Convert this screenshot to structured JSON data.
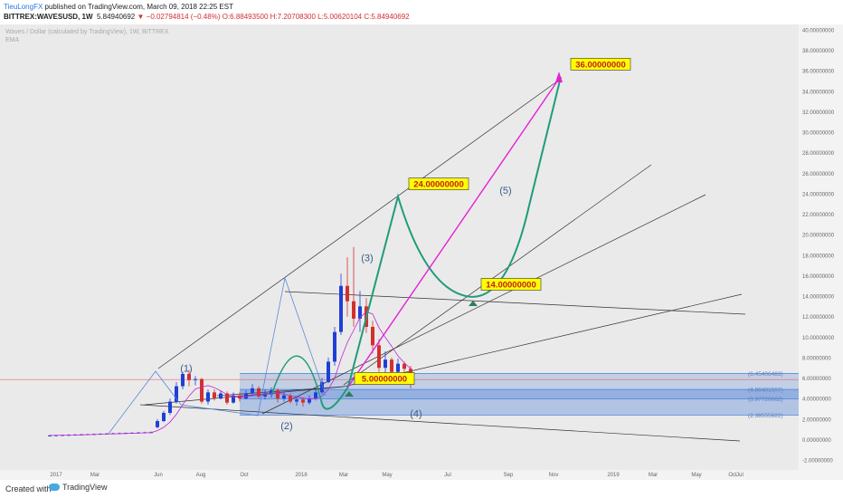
{
  "header": {
    "author": "TieuLongFX",
    "published": "published on TradingView.com, March 09, 2018 22:25 EST",
    "symbol": "BITTREX:WAVESUSD, 1W",
    "price": "5.84940692",
    "change": "−0.02794814 (−0.48%)",
    "open": "O:6.88493500",
    "high": "H:7.20708300",
    "low": "L:5.00620104",
    "close": "C:5.84940692"
  },
  "legend": {
    "title": "Waves / Dollar (calculated by TradingView), 1W, BITTREX",
    "indicator": "EMA"
  },
  "footer": {
    "created_with": "Created with",
    "brand": "TradingView"
  },
  "colors": {
    "plot_bg": "#eaeaea",
    "bull": "#1f3fd6",
    "bear": "#d32f2f",
    "wave_green": "#1f9c7a",
    "projection_magenta": "#e620d6",
    "fib_blue": "#4a7fd8",
    "label_yellow": "#ffff00"
  },
  "chart_data": {
    "type": "candlestick",
    "interval": "1W",
    "ylim": [
      -2,
      40
    ],
    "y_ticks": [
      "40.00000000",
      "38.00000000",
      "36.00000000",
      "34.00000000",
      "32.00000000",
      "30.00000000",
      "28.00000000",
      "26.00000000",
      "24.00000000",
      "22.00000000",
      "20.00000000",
      "18.00000000",
      "16.00000000",
      "14.00000000",
      "12.00000000",
      "10.00000000",
      "8.00000000",
      "6.00000000",
      "4.00000000",
      "2.00000000",
      "0.00000000",
      "-2.00000000"
    ],
    "x_ticks": [
      "2017",
      "Mar",
      "Jun",
      "Aug",
      "Oct",
      "2018",
      "Mar",
      "May",
      "Jul",
      "Sep",
      "Nov",
      "2019",
      "Mar",
      "May",
      "Jul",
      "Oct"
    ],
    "wave_labels": [
      {
        "text": "(1)",
        "x": "2017-06-01",
        "y": 6.6
      },
      {
        "text": "(2)",
        "x": "2017-09-20",
        "y": 1.0
      },
      {
        "text": "(3)",
        "x": "2017-12-18",
        "y": 17.4
      },
      {
        "text": "(4)",
        "x": "2018-02-10",
        "y": 2.2
      },
      {
        "text": "(5)",
        "x": "2018-05-20",
        "y": 24.0
      }
    ],
    "price_targets": [
      "5.00000000",
      "14.00000000",
      "24.00000000",
      "36.00000000"
    ],
    "fib_levels": [
      "6.45406483",
      "4.88401507",
      "3.97720662",
      "2.38555622"
    ],
    "fib_values": [
      6.454,
      4.884,
      3.977,
      2.386
    ],
    "current_price": 5.849
  }
}
